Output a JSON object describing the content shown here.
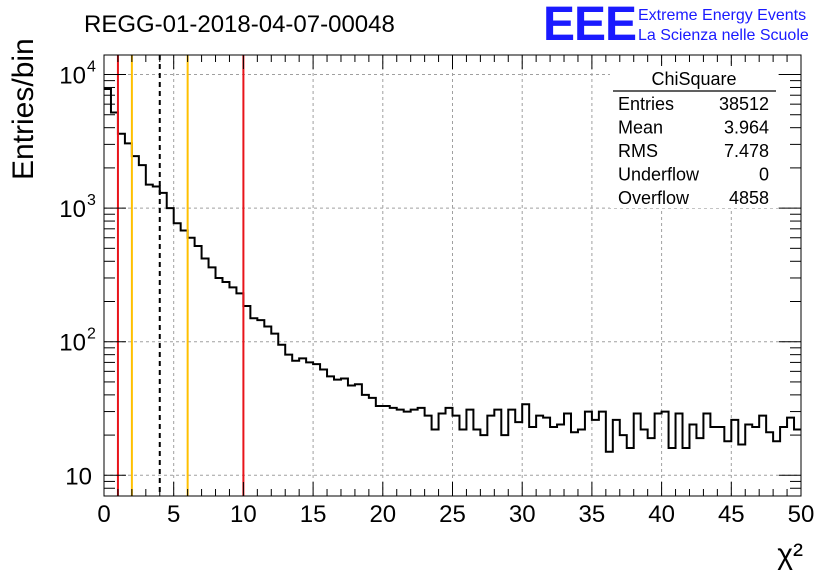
{
  "header": {
    "title": "REGG-01-2018-04-07-00048",
    "logo_mark": "EEE",
    "logo_line1": "Extreme Energy Events",
    "logo_line2": "La Scienza nelle Scuole"
  },
  "stats_box": {
    "name": "ChiSquare",
    "rows": [
      {
        "label": "Entries",
        "value": "38512"
      },
      {
        "label": "Mean",
        "value": "3.964"
      },
      {
        "label": "RMS",
        "value": "7.478"
      },
      {
        "label": "Underflow",
        "value": "0"
      },
      {
        "label": "Overflow",
        "value": "4858"
      }
    ]
  },
  "colors": {
    "red": "#e8141a",
    "orange": "#ffc000",
    "grid": "#a0a0a0",
    "logo": "#1a1aff"
  },
  "chart_data": {
    "type": "histogram",
    "title": "REGG-01-2018-04-07-00048",
    "xlabel": "χ²",
    "ylabel": "Entries/bin",
    "xlim": [
      0,
      50
    ],
    "ylim": [
      7,
      14000
    ],
    "yscale": "log",
    "grid": true,
    "bin_width": 0.5,
    "x_ticks": [
      0,
      5,
      10,
      15,
      20,
      25,
      30,
      35,
      40,
      45,
      50
    ],
    "x_tick_labels": [
      "0",
      "5",
      "10",
      "15",
      "20",
      "25",
      "30",
      "35",
      "40",
      "45",
      "50"
    ],
    "y_ticks": [
      {
        "value": 10,
        "base": "10",
        "exp": ""
      },
      {
        "value": 100,
        "base": "10",
        "exp": "2"
      },
      {
        "value": 1000,
        "base": "10",
        "exp": "3"
      },
      {
        "value": 10000,
        "base": "10",
        "exp": "4"
      }
    ],
    "values": [
      7800,
      5200,
      3600,
      3050,
      2450,
      2100,
      1500,
      1450,
      1300,
      1000,
      770,
      680,
      600,
      520,
      420,
      360,
      300,
      280,
      255,
      230,
      185,
      150,
      145,
      130,
      115,
      95,
      80,
      72,
      75,
      70,
      68,
      62,
      55,
      52,
      53,
      47,
      48,
      40,
      38,
      33,
      33,
      32,
      31,
      30,
      31,
      32,
      28,
      22,
      29,
      32,
      28,
      22,
      31,
      22,
      20,
      28,
      31,
      20,
      31,
      25,
      34,
      23,
      28,
      27,
      23,
      24,
      29,
      21,
      22,
      30,
      26,
      30,
      15,
      26,
      20,
      16,
      29,
      22,
      19,
      29,
      30,
      16,
      29,
      16,
      24,
      19,
      29,
      23,
      23,
      18,
      26,
      17,
      24,
      23,
      28,
      21,
      18,
      23,
      27,
      22
    ],
    "vertical_lines": [
      {
        "x": 1,
        "style": "solid",
        "color": "red"
      },
      {
        "x": 2,
        "style": "solid",
        "color": "orange"
      },
      {
        "x": 4,
        "style": "dashed",
        "color": "black"
      },
      {
        "x": 6,
        "style": "solid",
        "color": "orange"
      },
      {
        "x": 10,
        "style": "solid",
        "color": "red"
      }
    ]
  }
}
